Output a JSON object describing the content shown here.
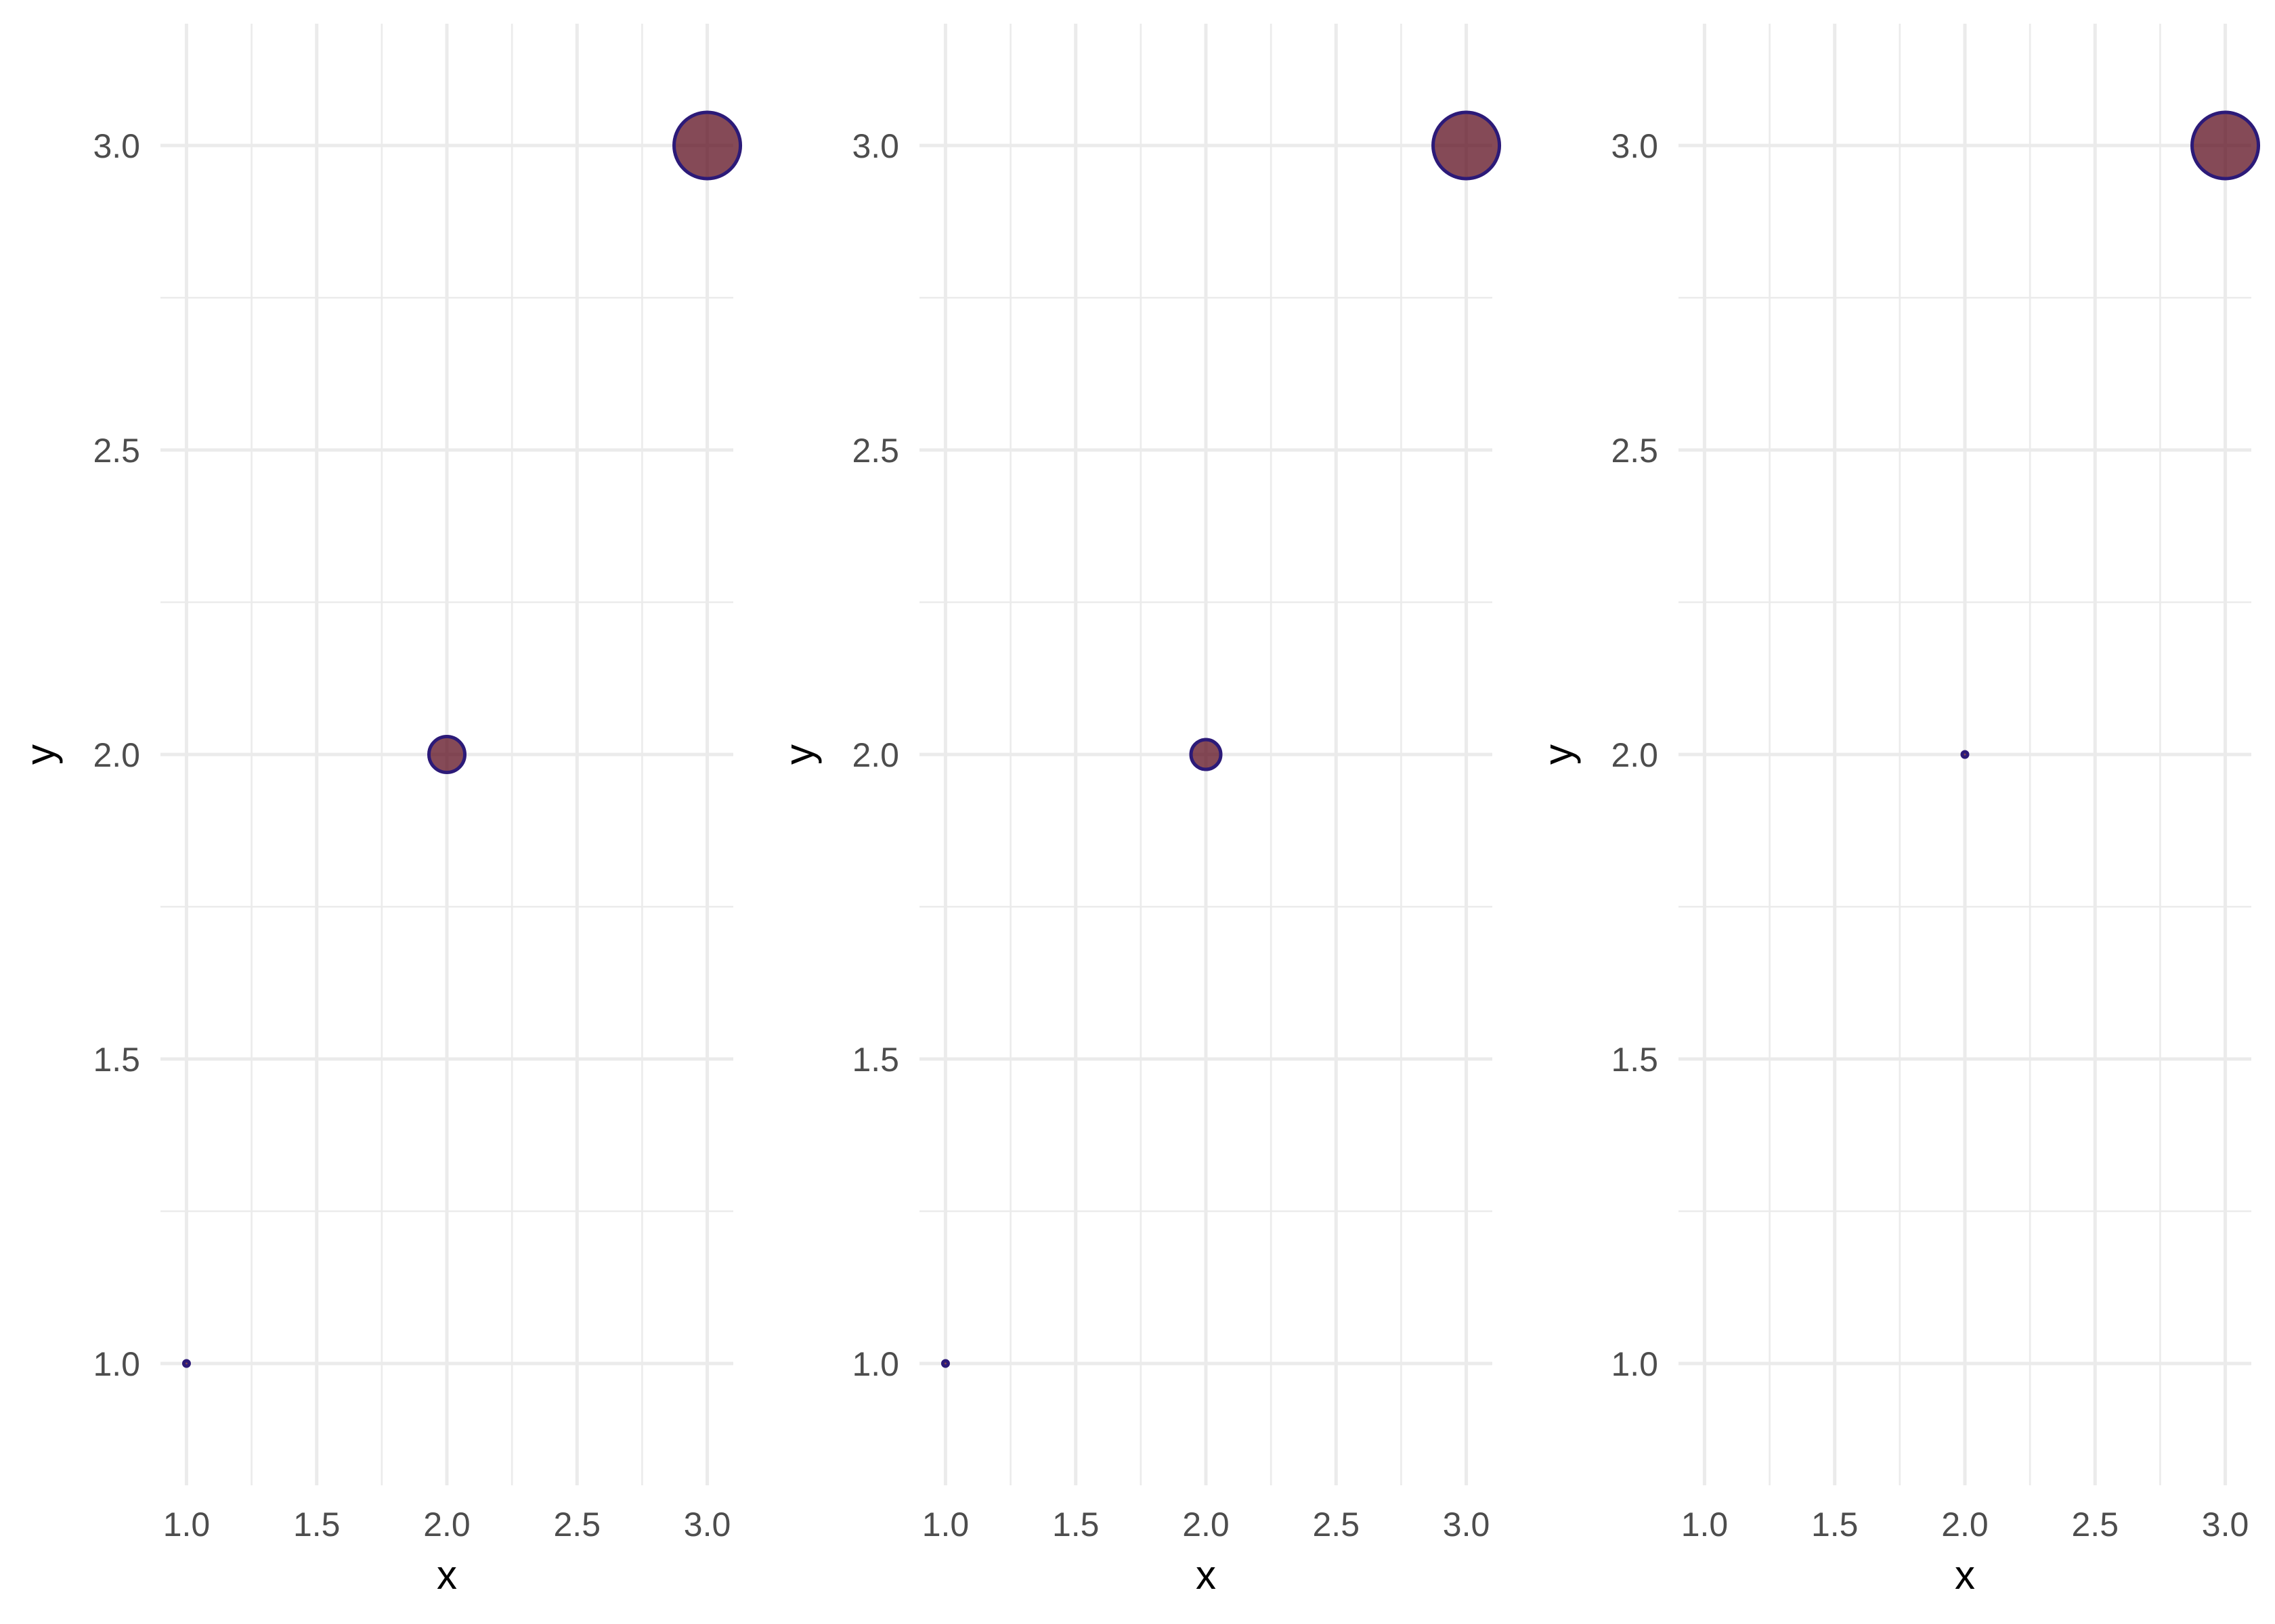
{
  "chart_data": [
    {
      "type": "scatter",
      "xlabel": "x",
      "ylabel": "y",
      "xlim": [
        0.9,
        3.1
      ],
      "ylim": [
        0.8,
        3.2
      ],
      "x_ticks": [
        "1.0",
        "1.5",
        "2.0",
        "2.5",
        "3.0"
      ],
      "y_ticks": [
        "1.0",
        "1.5",
        "2.0",
        "2.5",
        "3.0"
      ],
      "grid": true,
      "points": [
        {
          "x": 1,
          "y": 1,
          "size": 1
        },
        {
          "x": 2,
          "y": 2,
          "size": 2
        },
        {
          "x": 3,
          "y": 3,
          "size": 3
        }
      ]
    },
    {
      "type": "scatter",
      "xlabel": "x",
      "ylabel": "y",
      "xlim": [
        0.9,
        3.1
      ],
      "ylim": [
        0.8,
        3.2
      ],
      "x_ticks": [
        "1.0",
        "1.5",
        "2.0",
        "2.5",
        "3.0"
      ],
      "y_ticks": [
        "1.0",
        "1.5",
        "2.0",
        "2.5",
        "3.0"
      ],
      "grid": true,
      "points": [
        {
          "x": 1,
          "y": 1,
          "size": 1
        },
        {
          "x": 2,
          "y": 2,
          "size": 1.8
        },
        {
          "x": 3,
          "y": 3,
          "size": 3
        }
      ]
    },
    {
      "type": "scatter",
      "xlabel": "x",
      "ylabel": "y",
      "xlim": [
        0.9,
        3.1
      ],
      "ylim": [
        0.8,
        3.2
      ],
      "x_ticks": [
        "1.0",
        "1.5",
        "2.0",
        "2.5",
        "3.0"
      ],
      "y_ticks": [
        "1.0",
        "1.5",
        "2.0",
        "2.5",
        "3.0"
      ],
      "grid": true,
      "points": [
        {
          "x": 2,
          "y": 2,
          "size": 1
        },
        {
          "x": 3,
          "y": 3,
          "size": 3
        }
      ]
    }
  ],
  "colors": {
    "point_fill": "#5c0d1f",
    "point_stroke": "#2c1a78",
    "grid": "#ebebeb",
    "tick_text": "#4d4d4d",
    "axis_title": "#000000",
    "background": "#ffffff"
  }
}
